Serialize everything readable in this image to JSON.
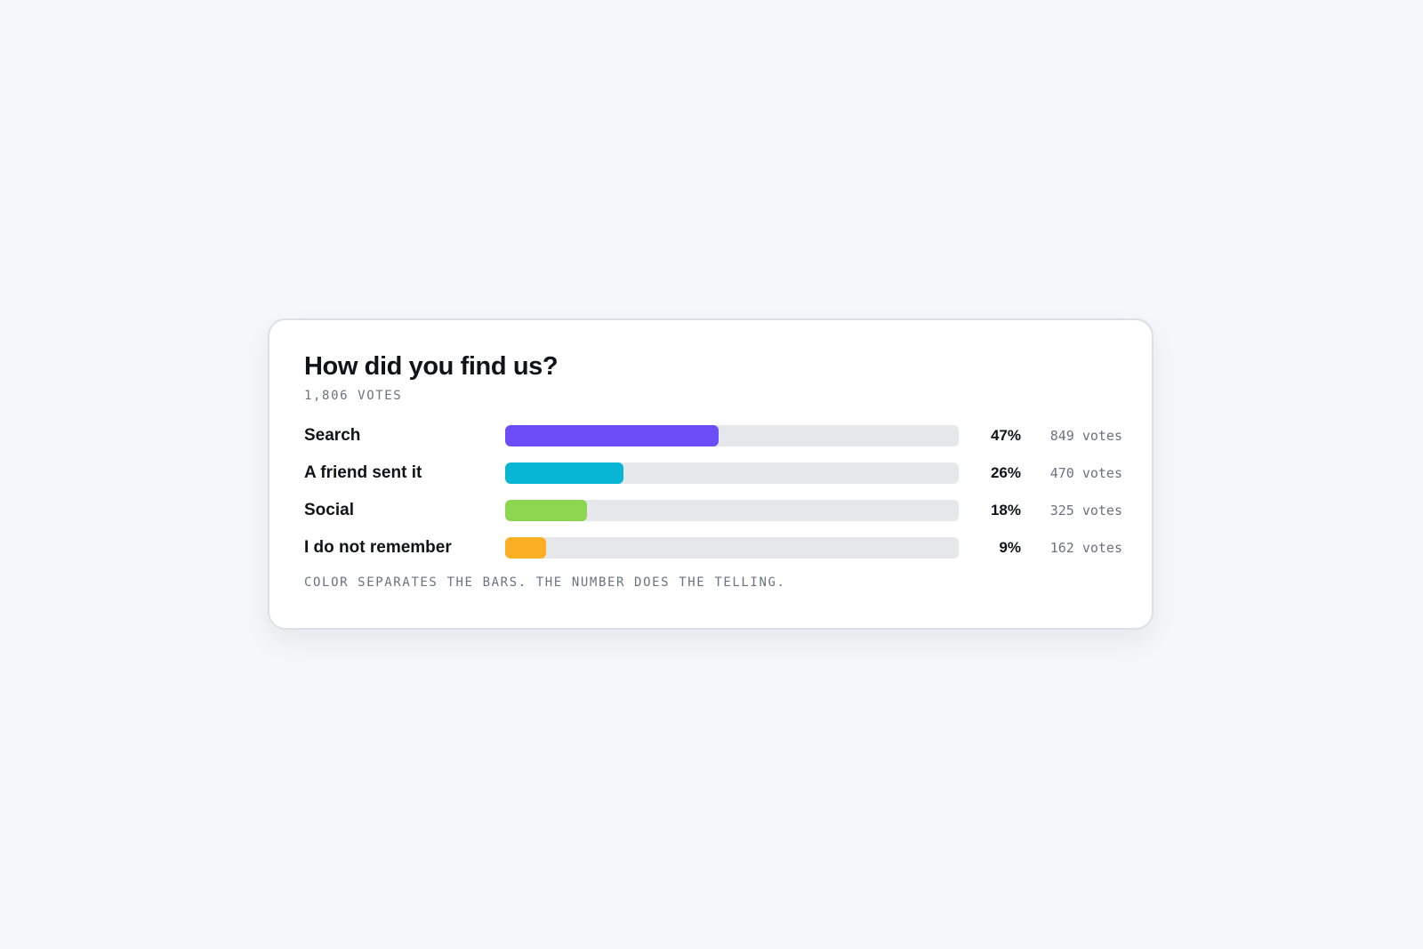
{
  "poll": {
    "title": "How did you find us?",
    "total_votes": "1,806 VOTES",
    "footnote": "COLOR SEPARATES THE BARS. THE NUMBER DOES THE TELLING.",
    "options": [
      {
        "label": "Search",
        "percent_label": "47%",
        "votes_label": "849 votes",
        "share": 0.47,
        "color": "#6b4cf6"
      },
      {
        "label": "A friend sent it",
        "percent_label": "26%",
        "votes_label": "470 votes",
        "share": 0.26,
        "color": "#06b6d4"
      },
      {
        "label": "Social",
        "percent_label": "18%",
        "votes_label": "325 votes",
        "share": 0.18,
        "color": "#8cd650"
      },
      {
        "label": "I do not remember",
        "percent_label": "9%",
        "votes_label": "162 votes",
        "share": 0.09,
        "color": "#fbb024"
      }
    ]
  },
  "colors": {
    "page_background": "#f5f7fa",
    "card_background": "#ffffff",
    "track": "#e6e7ea",
    "text_primary": "#111318",
    "text_muted": "#6b7280"
  }
}
